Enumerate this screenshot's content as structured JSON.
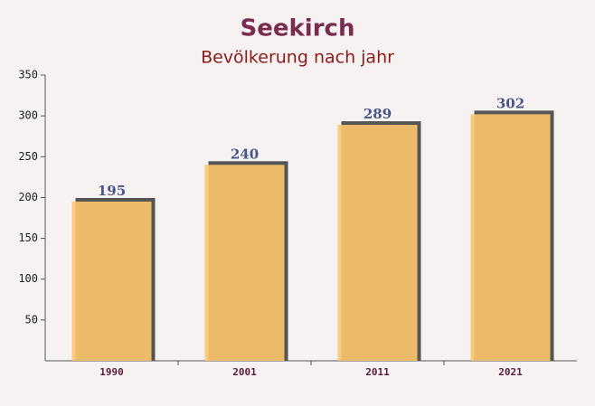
{
  "chart_data": {
    "type": "bar",
    "title": "Seekirch",
    "subtitle": "Bevölkerung nach jahr",
    "categories": [
      "1990",
      "2001",
      "2011",
      "2021"
    ],
    "values": [
      195,
      240,
      289,
      302
    ],
    "color": "#fcc66b",
    "ylim": [
      0,
      350
    ],
    "yticks": [
      50,
      100,
      150,
      200,
      250,
      300,
      350
    ]
  }
}
